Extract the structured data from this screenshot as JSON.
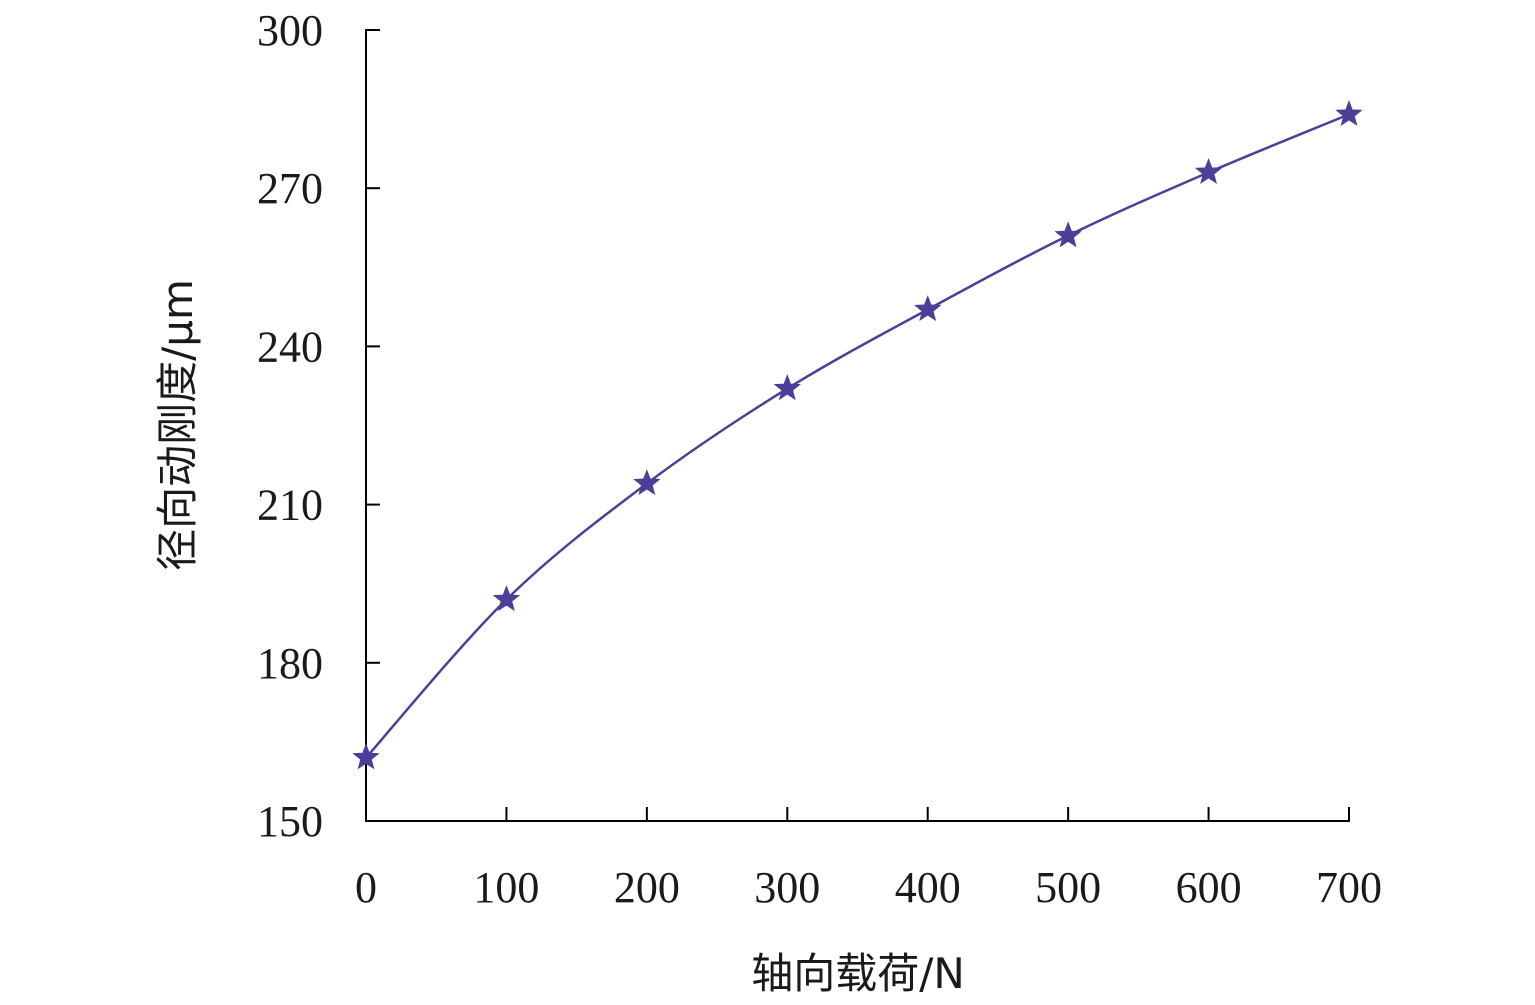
{
  "chart_data": {
    "type": "line",
    "title": "",
    "xlabel": "轴向载荷/N",
    "ylabel": "径向动刚度/μm",
    "x": [
      0,
      100,
      200,
      300,
      400,
      500,
      600,
      700
    ],
    "series": [
      {
        "values": [
          162,
          192,
          214,
          232,
          247,
          261,
          273,
          284
        ],
        "color": "#4b3f9b",
        "marker": "star",
        "smooth": true
      }
    ],
    "xlim": [
      0,
      700
    ],
    "ylim": [
      150,
      300
    ],
    "xticks": [
      0,
      100,
      200,
      300,
      400,
      500,
      600,
      700
    ],
    "yticks": [
      150,
      180,
      210,
      240,
      270,
      300
    ],
    "grid": false,
    "legend": "none"
  }
}
